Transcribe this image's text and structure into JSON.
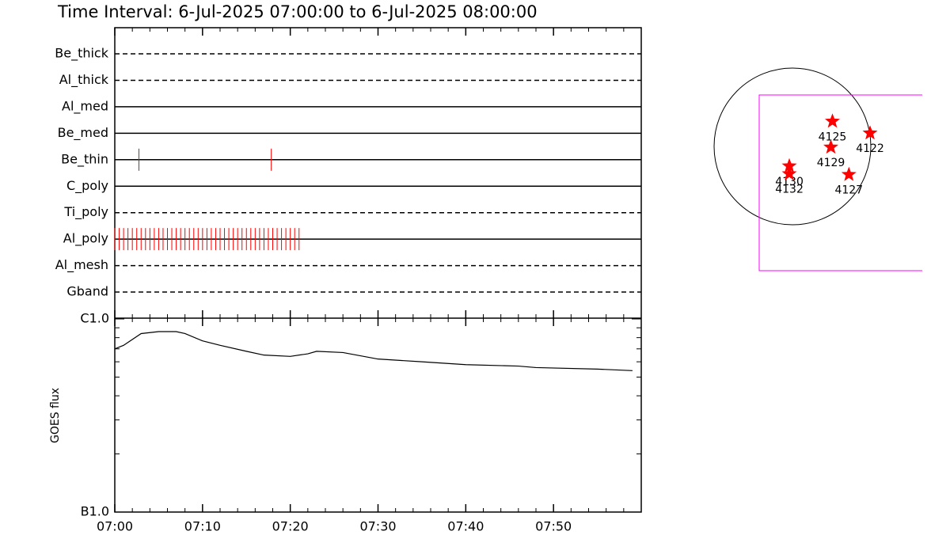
{
  "title": "Time Interval:  6-Jul-2025 07:00:00 to  6-Jul-2025 08:00:00",
  "chart_data": [
    {
      "type": "timeline",
      "color": "#ff0000",
      "xlim": [
        "07:00",
        "08:00"
      ],
      "xticks": [
        "07:00",
        "07:10",
        "07:20",
        "07:30",
        "07:40",
        "07:50"
      ],
      "xminor": [
        "07:02",
        "07:04",
        "07:06",
        "07:08",
        "07:12",
        "07:14",
        "07:16",
        "07:18",
        "07:22",
        "07:24",
        "07:26",
        "07:28",
        "07:32",
        "07:34",
        "07:36",
        "07:38",
        "07:42",
        "07:44",
        "07:46",
        "07:48",
        "07:52",
        "07:54",
        "07:56",
        "07:58"
      ],
      "filters": [
        {
          "name": "Be_thick",
          "line": "dashed",
          "events": []
        },
        {
          "name": "Al_thick",
          "line": "dashed",
          "events": []
        },
        {
          "name": "Al_med",
          "line": "solid",
          "events": []
        },
        {
          "name": "Be_med",
          "line": "solid",
          "events": []
        },
        {
          "name": "Be_thin",
          "line": "solid",
          "events": [
            "07:02:45",
            "07:17:50"
          ]
        },
        {
          "name": "C_poly",
          "line": "solid",
          "events": []
        },
        {
          "name": "Ti_poly",
          "line": "dashed",
          "events": []
        },
        {
          "name": "Al_poly",
          "line": "solid",
          "events": [
            "07:00:00",
            "07:00:30",
            "07:01:00",
            "07:01:30",
            "07:02:00",
            "07:02:30",
            "07:03:00",
            "07:03:30",
            "07:04:00",
            "07:04:30",
            "07:05:00",
            "07:05:30",
            "07:06:00",
            "07:06:30",
            "07:07:00",
            "07:07:30",
            "07:08:00",
            "07:08:30",
            "07:09:00",
            "07:09:30",
            "07:10:00",
            "07:10:30",
            "07:11:00",
            "07:11:30",
            "07:12:00",
            "07:12:30",
            "07:13:00",
            "07:13:30",
            "07:14:00",
            "07:14:30",
            "07:15:00",
            "07:15:30",
            "07:16:00",
            "07:16:30",
            "07:17:00",
            "07:17:30",
            "07:18:00",
            "07:18:30",
            "07:19:00",
            "07:19:30",
            "07:20:00",
            "07:20:30",
            "07:21:00"
          ]
        },
        {
          "name": "Al_mesh",
          "line": "dashed",
          "events": []
        },
        {
          "name": "Gband",
          "line": "dashed",
          "events": []
        }
      ]
    },
    {
      "type": "line",
      "ylabel": "GOES flux",
      "log": true,
      "color": "#000000",
      "ylim": [
        1e-06,
        1e-05
      ],
      "yticks": [
        {
          "value": 1e-05,
          "label": "C1.0"
        },
        {
          "value": 1e-06,
          "label": "B1.0"
        }
      ],
      "yminor": [
        2e-06,
        3e-06,
        4e-06,
        5e-06,
        6e-06,
        7e-06,
        8e-06,
        9e-06
      ],
      "x": [
        "07:00",
        "07:01",
        "07:03",
        "07:05",
        "07:07",
        "07:08",
        "07:10",
        "07:12",
        "07:15",
        "07:17",
        "07:20",
        "07:22",
        "07:23",
        "07:26",
        "07:30",
        "07:35",
        "07:40",
        "07:46",
        "07:48",
        "07:55",
        "07:59"
      ],
      "values": [
        7e-06,
        7.3e-06,
        8.4e-06,
        8.6e-06,
        8.6e-06,
        8.4e-06,
        7.7e-06,
        7.3e-06,
        6.8e-06,
        6.5e-06,
        6.4e-06,
        6.6e-06,
        6.8e-06,
        6.7e-06,
        6.2e-06,
        6e-06,
        5.8e-06,
        5.7e-06,
        5.6e-06,
        5.5e-06,
        5.4e-06
      ]
    },
    {
      "type": "scatter",
      "color": "#ff0000",
      "labels": [
        "4125",
        "4122",
        "4129",
        "4130",
        "4132",
        "4127"
      ],
      "x": [
        0.51,
        0.99,
        0.49,
        -0.04,
        -0.04,
        0.72
      ],
      "y": [
        0.32,
        0.17,
        -0.01,
        -0.25,
        -0.35,
        -0.36
      ]
    }
  ]
}
